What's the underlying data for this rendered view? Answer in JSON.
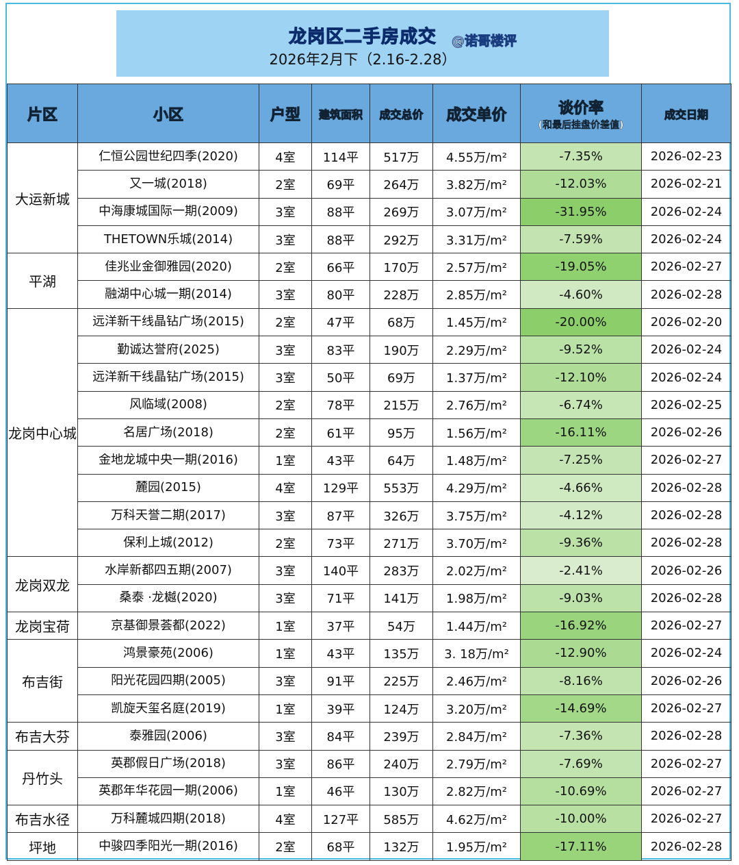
{
  "header": {
    "title": "龙岗区二手房成交",
    "subtitle": "2026年2月下（2.16-2.28）",
    "watermark": "@诺哥楼评"
  },
  "table": {
    "headers": [
      "片区",
      "小区",
      "户型",
      "建筑面积",
      "成交总价",
      "成交单价",
      "谈价率",
      "成交日期"
    ],
    "header_note": "(和最后挂盘价差值)",
    "groups": [
      {
        "district": "大运新城",
        "rows": [
          [
            "仁恒公园世纪四季(2020)",
            "4室",
            "114平",
            "517万",
            "4.55万/m²",
            "-7.35%",
            "2026-02-23"
          ],
          [
            "又一城(2018)",
            "2室",
            "69平",
            "264万",
            "3.82万/m²",
            "-12.03%",
            "2026-02-21"
          ],
          [
            "中海康城国际一期(2009)",
            "3室",
            "88平",
            "269万",
            "3.07万/m²",
            "-31.95%",
            "2026-02-24"
          ],
          [
            "THETOWN乐城(2014)",
            "3室",
            "88平",
            "292万",
            "3.31万/m²",
            "-7.59%",
            "2026-02-24"
          ]
        ]
      },
      {
        "district": "平湖",
        "rows": [
          [
            "佳兆业金御雅园(2020)",
            "2室",
            "66平",
            "170万",
            "2.57万/m²",
            "-19.05%",
            "2026-02-27"
          ],
          [
            "融湖中心城一期(2014)",
            "3室",
            "80平",
            "228万",
            "2.85万/m²",
            "-4.60%",
            "2026-02-28"
          ]
        ]
      },
      {
        "district": "龙岗中心城",
        "rows": [
          [
            "远洋新干线晶钻广场(2015)",
            "2室",
            "47平",
            "68万",
            "1.45万/m²",
            "-20.00%",
            "2026-02-20"
          ],
          [
            "勤诚达誉府(2025)",
            "3室",
            "83平",
            "190万",
            "2.29万/m²",
            "-9.52%",
            "2026-02-24"
          ],
          [
            "远洋新干线晶钻广场(2015)",
            "3室",
            "50平",
            "69万",
            "1.37万/m²",
            "-12.10%",
            "2026-02-24"
          ],
          [
            "风临域(2008)",
            "2室",
            "78平",
            "215万",
            "2.76万/m²",
            "-6.74%",
            "2026-02-25"
          ],
          [
            "名居广场(2018)",
            "2室",
            "61平",
            "95万",
            "1.56万/m²",
            "-16.11%",
            "2026-02-26"
          ],
          [
            "金地龙城中央一期(2016)",
            "1室",
            "43平",
            "64万",
            "1.48万/m²",
            "-7.25%",
            "2026-02-27"
          ],
          [
            "麓园(2015)",
            "4室",
            "129平",
            "553万",
            "4.29万/m²",
            "-4.66%",
            "2026-02-28"
          ],
          [
            "万科天誉二期(2017)",
            "3室",
            "87平",
            "326万",
            "3.75万/m²",
            "-4.12%",
            "2026-02-28"
          ],
          [
            "保利上城(2012)",
            "2室",
            "73平",
            "271万",
            "3.70万/m²",
            "-9.36%",
            "2026-02-28"
          ]
        ]
      },
      {
        "district": "龙岗双龙",
        "rows": [
          [
            "水岸新都四五期(2007)",
            "3室",
            "140平",
            "283万",
            "2.02万/m²",
            "-2.41%",
            "2026-02-26"
          ],
          [
            "桑泰 ·龙樾(2020)",
            "3室",
            "71平",
            "141万",
            "1.98万/m²",
            "-9.03%",
            "2026-02-28"
          ]
        ]
      },
      {
        "district": "龙岗宝荷",
        "rows": [
          [
            "京基御景荟都(2022)",
            "1室",
            "37平",
            "54万",
            "1.44万/m²",
            "-16.92%",
            "2026-02-27"
          ]
        ]
      },
      {
        "district": "布吉街",
        "rows": [
          [
            "鸿景豪苑(2006)",
            "1室",
            "43平",
            "135万",
            "3. 18万/m²",
            "-12.90%",
            "2026-02-24"
          ],
          [
            "阳光花园四期(2005)",
            "3室",
            "91平",
            "225万",
            "2.46万/m²",
            "-8.16%",
            "2026-02-26"
          ],
          [
            "凯旋天玺名庭(2019)",
            "1室",
            "39平",
            "124万",
            "3.20万/m²",
            "-14.69%",
            "2026-02-27"
          ]
        ]
      },
      {
        "district": "布吉大芬",
        "rows": [
          [
            "泰雅园(2006)",
            "3室",
            "84平",
            "239万",
            "2.84万/m²",
            "-7.36%",
            "2026-02-28"
          ]
        ]
      },
      {
        "district": "丹竹头",
        "rows": [
          [
            "英郡假日广场(2018)",
            "3室",
            "86平",
            "240万",
            "2.79万/m²",
            "-7.69%",
            "2026-02-27"
          ],
          [
            "英郡年华花园一期(2006)",
            "1室",
            "46平",
            "130万",
            "2.82万/m²",
            "-10.69%",
            "2026-02-27"
          ]
        ]
      },
      {
        "district": "布吉水径",
        "rows": [
          [
            "万科麓城四期(2018)",
            "4室",
            "127平",
            "585万",
            "4.62万/m²",
            "-10.00%",
            "2026-02-27"
          ]
        ]
      },
      {
        "district": "坪地",
        "rows": [
          [
            "中骏四季阳光一期(2016)",
            "2室",
            "68平",
            "132万",
            "1.95万/m²",
            "-17.11%",
            "2026-02-28"
          ]
        ]
      }
    ]
  }
}
